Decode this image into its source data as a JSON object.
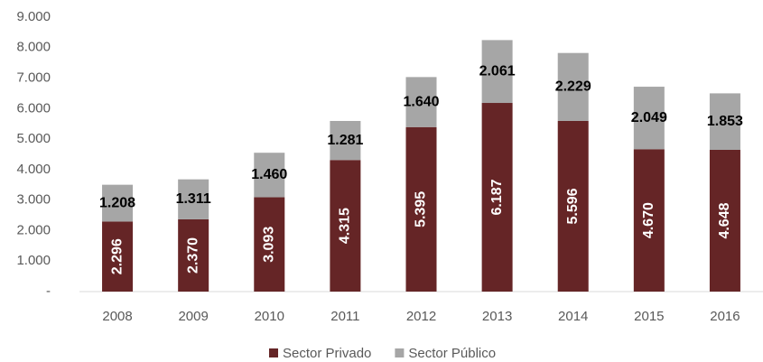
{
  "chart_data": {
    "type": "stacked-bar",
    "categories": [
      "2008",
      "2009",
      "2010",
      "2011",
      "2012",
      "2013",
      "2014",
      "2015",
      "2016"
    ],
    "series": [
      {
        "name": "Sector Privado",
        "color": "#652526",
        "values": [
          2296,
          2370,
          3093,
          4315,
          5395,
          6187,
          5596,
          4670,
          4648
        ],
        "value_labels": [
          "2.296",
          "2.370",
          "3.093",
          "4.315",
          "5.395",
          "6.187",
          "5.596",
          "4.670",
          "4.648"
        ]
      },
      {
        "name": "Sector Público",
        "color": "#a6a6a6",
        "values": [
          1208,
          1311,
          1460,
          1281,
          1640,
          2061,
          2229,
          2049,
          1853
        ],
        "value_labels": [
          "1.208",
          "1.311",
          "1.460",
          "1.281",
          "1.640",
          "2.061",
          "2.229",
          "2.049",
          "1.853"
        ]
      }
    ],
    "ylim": [
      0,
      9000
    ],
    "yticks": [
      {
        "value": 0,
        "label": "-"
      },
      {
        "value": 1000,
        "label": "1.000"
      },
      {
        "value": 2000,
        "label": "2.000"
      },
      {
        "value": 3000,
        "label": "3.000"
      },
      {
        "value": 4000,
        "label": "4.000"
      },
      {
        "value": 5000,
        "label": "5.000"
      },
      {
        "value": 6000,
        "label": "6.000"
      },
      {
        "value": 7000,
        "label": "7.000"
      },
      {
        "value": 8000,
        "label": "8.000"
      },
      {
        "value": 9000,
        "label": "9.000"
      }
    ],
    "legend": "bottom"
  }
}
